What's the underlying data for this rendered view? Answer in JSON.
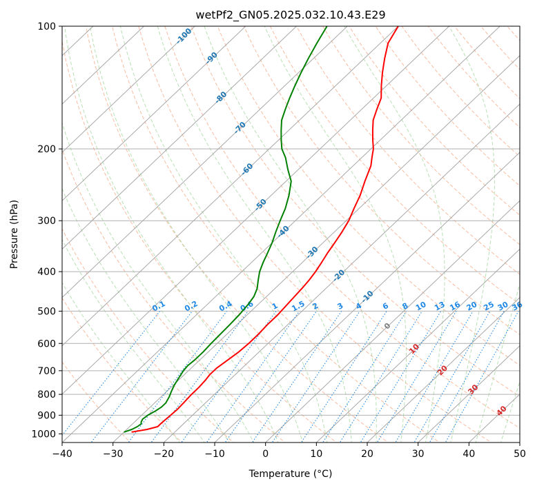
{
  "chart_data": {
    "type": "line",
    "title": "wetPf2_GN05.2025.032.10.43.E29",
    "xlabel": "Temperature (°C)",
    "ylabel": "Pressure (hPa)",
    "xlim": [
      -40,
      50
    ],
    "ylim": [
      1050,
      100
    ],
    "y_scale": "log",
    "x_ticks": [
      -40,
      -30,
      -20,
      -10,
      0,
      10,
      20,
      30,
      40,
      50
    ],
    "y_ticks": [
      100,
      200,
      300,
      400,
      500,
      600,
      700,
      800,
      900,
      1000
    ],
    "grid": true,
    "skew_isotherms": true,
    "isotherm_labels": [
      -100,
      -90,
      -80,
      -70,
      -60,
      -50,
      -40,
      -30,
      -20,
      -10,
      0,
      10,
      20,
      30,
      40
    ],
    "mixing_ratio_labels": [
      "0.1",
      "0.2",
      "0.4",
      "0.6",
      "1",
      "1.5",
      "2",
      "3",
      "4",
      "6",
      "8",
      "10",
      "13",
      "16",
      "20",
      "25",
      "30",
      "36"
    ],
    "series": [
      {
        "color": "#ff0000",
        "points": [
          [
            -28.5,
            990
          ],
          [
            -26,
            975
          ],
          [
            -24.5,
            960
          ],
          [
            -24.5,
            940
          ],
          [
            -24.3,
            900
          ],
          [
            -24.2,
            870
          ],
          [
            -24.3,
            840
          ],
          [
            -24.5,
            800
          ],
          [
            -24.5,
            770
          ],
          [
            -24.7,
            740
          ],
          [
            -25,
            715
          ],
          [
            -25,
            690
          ],
          [
            -24.5,
            660
          ],
          [
            -24,
            630
          ],
          [
            -23.8,
            600
          ],
          [
            -23.8,
            570
          ],
          [
            -24,
            540
          ],
          [
            -24,
            510
          ],
          [
            -24.3,
            480
          ],
          [
            -24.5,
            460
          ],
          [
            -24.7,
            440
          ],
          [
            -25,
            420
          ],
          [
            -25.5,
            400
          ],
          [
            -26.2,
            380
          ],
          [
            -27,
            360
          ],
          [
            -27.7,
            340
          ],
          [
            -28.5,
            320
          ],
          [
            -29.5,
            300
          ],
          [
            -31,
            280
          ],
          [
            -32.5,
            260
          ],
          [
            -34.5,
            240
          ],
          [
            -36.5,
            220
          ],
          [
            -38,
            210
          ],
          [
            -39.5,
            200
          ],
          [
            -41.5,
            190
          ],
          [
            -43.5,
            180
          ],
          [
            -45.5,
            170
          ],
          [
            -47,
            160
          ],
          [
            -48.5,
            150
          ],
          [
            -51,
            140
          ],
          [
            -53.5,
            130
          ],
          [
            -56,
            120
          ],
          [
            -58.5,
            110
          ],
          [
            -60,
            100
          ]
        ]
      },
      {
        "color": "#008000",
        "points": [
          [
            -30,
            990
          ],
          [
            -29,
            975
          ],
          [
            -28.5,
            960
          ],
          [
            -28.3,
            945
          ],
          [
            -28.7,
            935
          ],
          [
            -29,
            920
          ],
          [
            -28.8,
            900
          ],
          [
            -28.2,
            880
          ],
          [
            -27.8,
            860
          ],
          [
            -27.8,
            840
          ],
          [
            -28.4,
            810
          ],
          [
            -29,
            790
          ],
          [
            -29.8,
            760
          ],
          [
            -30.4,
            730
          ],
          [
            -31,
            700
          ],
          [
            -31.2,
            680
          ],
          [
            -31,
            660
          ],
          [
            -31,
            630
          ],
          [
            -31.2,
            600
          ],
          [
            -31.3,
            570
          ],
          [
            -31.4,
            540
          ],
          [
            -31.6,
            510
          ],
          [
            -32,
            480
          ],
          [
            -32.5,
            460
          ],
          [
            -33.5,
            440
          ],
          [
            -35,
            420
          ],
          [
            -36.5,
            400
          ],
          [
            -37.7,
            380
          ],
          [
            -38.8,
            360
          ],
          [
            -40,
            340
          ],
          [
            -41.5,
            320
          ],
          [
            -43,
            300
          ],
          [
            -44.5,
            280
          ],
          [
            -46.5,
            260
          ],
          [
            -49,
            240
          ],
          [
            -52,
            225
          ],
          [
            -55,
            210
          ],
          [
            -57.5,
            200
          ],
          [
            -59.5,
            190
          ],
          [
            -61.5,
            180
          ],
          [
            -63.5,
            170
          ],
          [
            -65,
            160
          ],
          [
            -66.5,
            150
          ],
          [
            -68,
            140
          ],
          [
            -69.5,
            130
          ],
          [
            -71,
            120
          ],
          [
            -72.5,
            110
          ],
          [
            -74,
            100
          ]
        ]
      }
    ]
  }
}
